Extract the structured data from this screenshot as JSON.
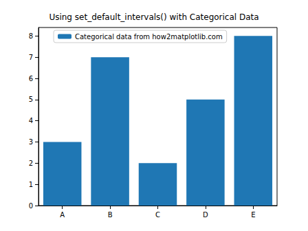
{
  "chart_data": {
    "type": "bar",
    "title": "Using set_default_intervals() with Categorical Data",
    "categories": [
      "A",
      "B",
      "C",
      "D",
      "E"
    ],
    "values": [
      3,
      7,
      2,
      5,
      8
    ],
    "series_name": "Categorical data from how2matplotlib.com",
    "color": "#1f77b4",
    "ylim": [
      0,
      8.4
    ],
    "yticks": [
      0,
      1,
      2,
      3,
      4,
      5,
      6,
      7,
      8
    ],
    "grid": false,
    "legend": "upper left"
  }
}
